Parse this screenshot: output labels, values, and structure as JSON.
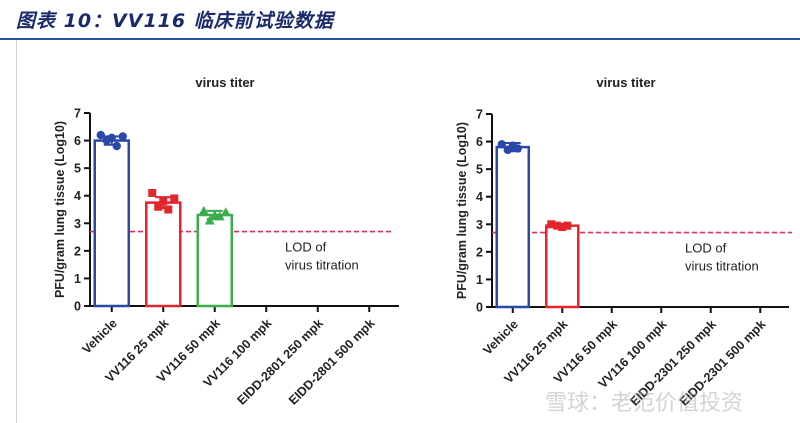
{
  "header": {
    "title": "图表 10：VV116 临床前试验数据"
  },
  "watermark": {
    "text": "雪球：老范价值投资"
  },
  "colors": {
    "blue": "#2a48a8",
    "red": "#e2262b",
    "green": "#3bad4c",
    "lod": "#e0305a"
  },
  "chart_data": [
    {
      "type": "bar",
      "title": "virus titer",
      "ylabel": "PFU/gram lung tissue (Log10)",
      "ylim": [
        0,
        7
      ],
      "yticks": [
        0,
        1,
        2,
        3,
        4,
        5,
        6,
        7
      ],
      "categories": [
        "Vehicle",
        "VV116 25 mpk",
        "VV116 50 mpk",
        "VV116 100 mpk",
        "EIDD-2801 250 mpk",
        "EIDD-2801 500 mpk"
      ],
      "values": [
        6.0,
        3.75,
        3.3,
        null,
        null,
        null
      ],
      "errors": [
        0.15,
        0.2,
        0.15,
        null,
        null,
        null
      ],
      "bar_colors": [
        "#2a48a8",
        "#e2262b",
        "#3bad4c",
        null,
        null,
        null
      ],
      "point_markers": [
        "circle",
        "square",
        "triangle",
        null,
        null,
        null
      ],
      "points": [
        [
          6.2,
          6.0,
          6.1,
          5.8,
          6.15
        ],
        [
          4.1,
          3.6,
          3.8,
          3.5,
          3.9
        ],
        [
          3.45,
          3.1,
          3.3,
          3.25,
          3.4
        ],
        [],
        [],
        []
      ],
      "lod": {
        "value": 2.7,
        "label": [
          "LOD of",
          "virus titration"
        ]
      }
    },
    {
      "type": "bar",
      "title": "virus titer",
      "ylabel": "PFU/gram lung tissue (Log10)",
      "ylim": [
        0,
        7
      ],
      "yticks": [
        0,
        1,
        2,
        3,
        4,
        5,
        6,
        7
      ],
      "categories": [
        "Vehicle",
        "VV116 25 mpk",
        "VV116 50 mpk",
        "VV116 100 mpk",
        "EIDD-2301 250 mpk",
        "EIDD-2301 500 mpk"
      ],
      "values": [
        5.8,
        2.95,
        null,
        null,
        null,
        null
      ],
      "errors": [
        0.15,
        0.05,
        null,
        null,
        null,
        null
      ],
      "bar_colors": [
        "#2a48a8",
        "#e2262b",
        null,
        null,
        null,
        null
      ],
      "point_markers": [
        "circle",
        "square",
        null,
        null,
        null,
        null
      ],
      "points": [
        [
          5.9,
          5.7,
          5.85,
          5.75
        ],
        [
          3.0,
          2.95,
          2.9,
          2.95
        ],
        [],
        [],
        [],
        []
      ],
      "lod": {
        "value": 2.7,
        "label": [
          "LOD of",
          "virus titration"
        ]
      }
    }
  ]
}
